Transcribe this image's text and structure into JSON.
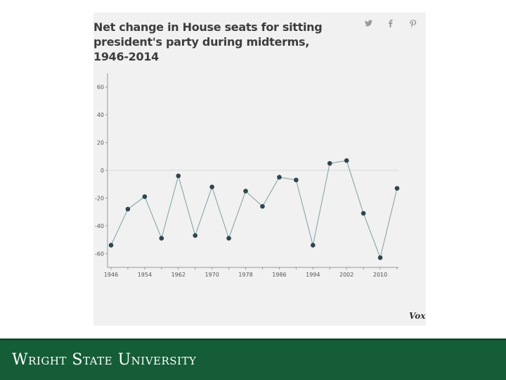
{
  "chart_data": {
    "type": "line",
    "title": "Net change in House seats for sitting president's party during midterms, 1946-2014",
    "xlabel": "",
    "ylabel": "",
    "x": [
      1946,
      1950,
      1954,
      1958,
      1962,
      1966,
      1970,
      1974,
      1978,
      1982,
      1986,
      1990,
      1994,
      1998,
      2002,
      2006,
      2010,
      2014
    ],
    "values": [
      -54,
      -28,
      -19,
      -49,
      -4,
      -47,
      -12,
      -49,
      -15,
      -26,
      -5,
      -7,
      -54,
      5,
      7,
      -31,
      -63,
      -13
    ],
    "x_ticks": [
      "1946",
      "1954",
      "1962",
      "1970",
      "1978",
      "1986",
      "1994",
      "2002",
      "2010"
    ],
    "y_ticks": [
      "60",
      "40",
      "20",
      "0",
      "-20",
      "-40",
      "-60"
    ],
    "ylim": [
      -70,
      70
    ],
    "xlim": [
      1946,
      2014
    ],
    "grid": false,
    "reference_line": 0,
    "line_color": "#7f9ea5",
    "marker_color": "#2f4550"
  },
  "social": {
    "icons": [
      "twitter-icon",
      "facebook-icon",
      "pinterest-icon"
    ]
  },
  "brand": "Vox",
  "footer": {
    "university": "Wright State University"
  }
}
